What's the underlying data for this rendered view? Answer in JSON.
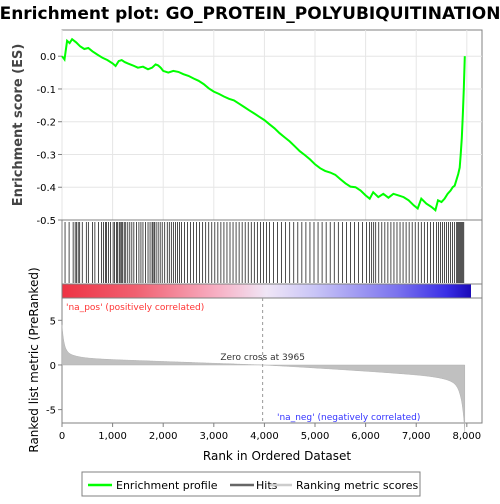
{
  "chart_data": {
    "type": "line",
    "title": "Enrichment plot: GO_PROTEIN_POLYUBIQUITINATION",
    "ylabel": "Enrichment score (ES)",
    "xlabel": "Rank in Ordered Dataset",
    "ylabel_bottom": "Ranked list metric (PreRanked)",
    "es_ylim": [
      -0.5,
      0.08
    ],
    "es_yticks": [
      "0.0",
      "-0.1",
      "-0.2",
      "-0.3",
      "-0.4",
      "-0.5"
    ],
    "es_ytick_values": [
      0.0,
      -0.1,
      -0.2,
      -0.3,
      -0.4,
      -0.5
    ],
    "metric_ylim": [
      -6.5,
      7.5
    ],
    "metric_yticks": [
      "5",
      "0",
      "-5"
    ],
    "metric_ytick_values": [
      5,
      0,
      -5
    ],
    "xlim": [
      0,
      8300
    ],
    "xticks": [
      "0",
      "1,000",
      "2,000",
      "3,000",
      "4,000",
      "5,000",
      "6,000",
      "7,000",
      "8,000"
    ],
    "xtick_values": [
      0,
      1000,
      2000,
      3000,
      4000,
      5000,
      6000,
      7000,
      8000
    ],
    "n_genes": 7960,
    "zero_cross_label": "Zero cross at 3965",
    "zero_cross": 3965,
    "pos_label": "'na_pos' (positively correlated)",
    "neg_label": "'na_neg' (negatively correlated)",
    "series": [
      {
        "name": "Enrichment profile",
        "color": "#00ff00",
        "x": [
          0,
          50,
          100,
          150,
          200,
          280,
          360,
          440,
          520,
          600,
          700,
          800,
          900,
          1000,
          1060,
          1120,
          1180,
          1240,
          1300,
          1400,
          1500,
          1600,
          1700,
          1780,
          1850,
          1900,
          1950,
          2000,
          2100,
          2200,
          2300,
          2400,
          2500,
          2600,
          2700,
          2800,
          2900,
          3000,
          3100,
          3200,
          3300,
          3400,
          3500,
          3600,
          3700,
          3800,
          3900,
          4000,
          4100,
          4200,
          4300,
          4400,
          4500,
          4600,
          4700,
          4800,
          4900,
          5000,
          5100,
          5200,
          5300,
          5400,
          5500,
          5600,
          5700,
          5800,
          5900,
          6000,
          6080,
          6150,
          6250,
          6350,
          6450,
          6550,
          6650,
          6750,
          6850,
          6950,
          7030,
          7100,
          7200,
          7300,
          7380,
          7430,
          7500,
          7560,
          7620,
          7680,
          7720,
          7760,
          7800,
          7830,
          7860,
          7880,
          7900,
          7920,
          7940,
          7960
        ],
        "y": [
          0.0,
          -0.01,
          0.047,
          0.04,
          0.052,
          0.042,
          0.03,
          0.022,
          0.025,
          0.015,
          0.005,
          -0.005,
          -0.012,
          -0.022,
          -0.03,
          -0.015,
          -0.012,
          -0.018,
          -0.022,
          -0.028,
          -0.035,
          -0.032,
          -0.04,
          -0.035,
          -0.025,
          -0.028,
          -0.035,
          -0.045,
          -0.05,
          -0.045,
          -0.048,
          -0.055,
          -0.06,
          -0.068,
          -0.075,
          -0.085,
          -0.098,
          -0.108,
          -0.115,
          -0.123,
          -0.13,
          -0.135,
          -0.145,
          -0.155,
          -0.165,
          -0.175,
          -0.185,
          -0.195,
          -0.208,
          -0.22,
          -0.235,
          -0.248,
          -0.26,
          -0.275,
          -0.29,
          -0.302,
          -0.315,
          -0.33,
          -0.342,
          -0.35,
          -0.355,
          -0.362,
          -0.375,
          -0.388,
          -0.398,
          -0.4,
          -0.41,
          -0.425,
          -0.435,
          -0.415,
          -0.43,
          -0.42,
          -0.432,
          -0.42,
          -0.425,
          -0.43,
          -0.44,
          -0.455,
          -0.465,
          -0.435,
          -0.45,
          -0.46,
          -0.47,
          -0.44,
          -0.445,
          -0.435,
          -0.42,
          -0.41,
          -0.4,
          -0.395,
          -0.375,
          -0.36,
          -0.34,
          -0.3,
          -0.25,
          -0.18,
          -0.1,
          0.0
        ]
      },
      {
        "name": "Hits",
        "color": "#000000",
        "positions": [
          60,
          140,
          220,
          260,
          290,
          320,
          350,
          400,
          480,
          520,
          600,
          650,
          720,
          780,
          820,
          860,
          880,
          920,
          960,
          1010,
          1040,
          1080,
          1100,
          1130,
          1150,
          1180,
          1200,
          1230,
          1260,
          1300,
          1340,
          1380,
          1420,
          1470,
          1520,
          1560,
          1600,
          1650,
          1700,
          1740,
          1780,
          1800,
          1830,
          1860,
          1900,
          1940,
          1980,
          2030,
          2080,
          2120,
          2160,
          2200,
          2240,
          2280,
          2320,
          2360,
          2420,
          2480,
          2540,
          2600,
          2660,
          2720,
          2780,
          2840,
          2900,
          2960,
          3020,
          3080,
          3140,
          3200,
          3260,
          3320,
          3380,
          3440,
          3500,
          3560,
          3620,
          3680,
          3740,
          3800,
          3860,
          3920,
          3980,
          4040,
          4100,
          4180,
          4260,
          4340,
          4420,
          4500,
          4580,
          4660,
          4740,
          4820,
          4900,
          4980,
          5060,
          5140,
          5220,
          5300,
          5380,
          5460,
          5540,
          5620,
          5700,
          5780,
          5860,
          5940,
          6020,
          6080,
          6120,
          6160,
          6200,
          6260,
          6320,
          6380,
          6440,
          6500,
          6560,
          6620,
          6680,
          6740,
          6800,
          6860,
          6920,
          6980,
          7040,
          7100,
          7160,
          7220,
          7280,
          7340,
          7400,
          7440,
          7480,
          7520,
          7560,
          7600,
          7640,
          7680,
          7720,
          7760,
          7800,
          7820,
          7840,
          7860,
          7880,
          7900,
          7920,
          7940
        ]
      },
      {
        "name": "Ranking metric scores",
        "color": "#c0c0c0"
      }
    ]
  },
  "legend": {
    "items": [
      "Enrichment profile",
      "Hits",
      "Ranking metric scores"
    ]
  },
  "colors": {
    "es_line": "#00ff00",
    "pos_text": "#ff3333",
    "neg_text": "#3333ff",
    "metric_fill": "#c0c0c0",
    "frame": "#808080"
  }
}
